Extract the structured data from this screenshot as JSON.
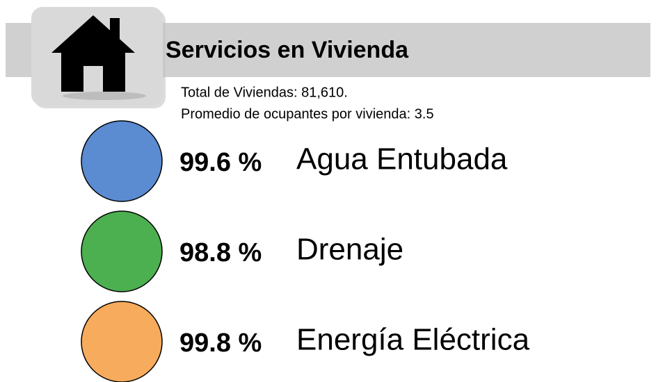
{
  "header": {
    "title": "Servicios en Vivienda",
    "lines": [
      "Total de Viviendas: 81,610.",
      "Promedio de ocupantes por vivienda: 3.5"
    ]
  },
  "items": [
    {
      "percent": "99.6 %",
      "label": "Agua Entubada",
      "color": "#5b8bd0"
    },
    {
      "percent": "98.8 %",
      "label": "Drenaje",
      "color": "#4caf50"
    },
    {
      "percent": "99.8 %",
      "label": "Energía Eléctrica",
      "color": "#f7ab5c"
    }
  ]
}
